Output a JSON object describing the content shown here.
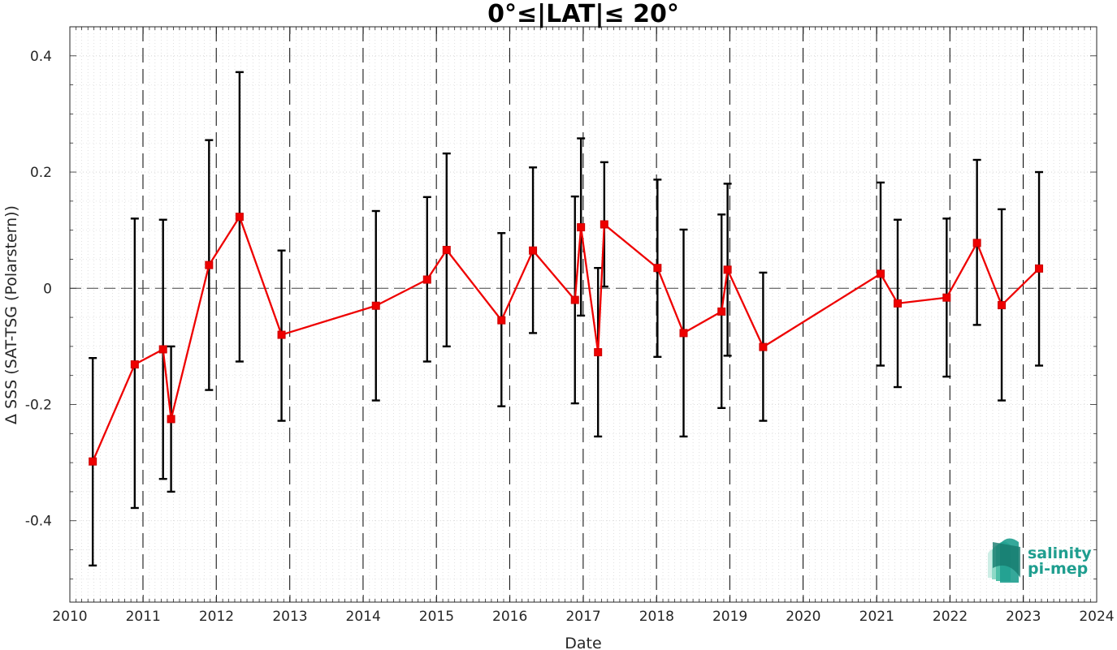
{
  "chart_data": {
    "type": "line",
    "title": "0°≤|LAT|≤ 20°",
    "xlabel": "Date",
    "ylabel": "Δ SSS (SAT-TSG (Polarstern))",
    "xlim": [
      "2010-01-01",
      "2024-01-01"
    ],
    "ylim": [
      -0.54,
      0.45
    ],
    "x_ticks": [
      "2010",
      "2011",
      "2012",
      "2013",
      "2014",
      "2015",
      "2016",
      "2017",
      "2018",
      "2019",
      "2020",
      "2021",
      "2022",
      "2023",
      "2024"
    ],
    "y_ticks": [
      {
        "value": -0.4,
        "label": "-0.4"
      },
      {
        "value": -0.2,
        "label": "-0.2"
      },
      {
        "value": 0,
        "label": "0"
      },
      {
        "value": 0.2,
        "label": "0.2"
      },
      {
        "value": 0.4,
        "label": "0.4"
      }
    ],
    "grid": true,
    "reference_line_y": 0,
    "vertical_dashed_lines": [
      "2010-12-31",
      "2011-12-31",
      "2012-12-31",
      "2013-12-31",
      "2014-12-31",
      "2015-12-31",
      "2016-12-31",
      "2017-12-31",
      "2018-12-31",
      "2019-12-31",
      "2020-12-31",
      "2021-12-31",
      "2022-12-31"
    ],
    "series": [
      {
        "color": "#ee0000",
        "errorbar_color": "#000000",
        "points": [
          {
            "x": "2010-04-25",
            "y": -0.298,
            "low": -0.477,
            "high": -0.12
          },
          {
            "x": "2010-11-20",
            "y": -0.131,
            "low": -0.378,
            "high": 0.12
          },
          {
            "x": "2011-04-10",
            "y": -0.105,
            "low": -0.328,
            "high": 0.118
          },
          {
            "x": "2011-05-20",
            "y": -0.225,
            "low": -0.35,
            "high": -0.1
          },
          {
            "x": "2011-11-25",
            "y": 0.04,
            "low": -0.175,
            "high": 0.255
          },
          {
            "x": "2012-04-25",
            "y": 0.123,
            "low": -0.126,
            "high": 0.372
          },
          {
            "x": "2012-11-20",
            "y": -0.08,
            "low": -0.228,
            "high": 0.065
          },
          {
            "x": "2014-03-05",
            "y": -0.03,
            "low": -0.193,
            "high": 0.133
          },
          {
            "x": "2014-11-15",
            "y": 0.015,
            "low": -0.126,
            "high": 0.157
          },
          {
            "x": "2015-02-20",
            "y": 0.066,
            "low": -0.1,
            "high": 0.232
          },
          {
            "x": "2015-11-20",
            "y": -0.055,
            "low": -0.203,
            "high": 0.095
          },
          {
            "x": "2016-04-25",
            "y": 0.065,
            "low": -0.077,
            "high": 0.208
          },
          {
            "x": "2016-11-20",
            "y": -0.02,
            "low": -0.198,
            "high": 0.158
          },
          {
            "x": "2016-12-20",
            "y": 0.105,
            "low": -0.047,
            "high": 0.258
          },
          {
            "x": "2017-03-15",
            "y": -0.11,
            "low": -0.255,
            "high": 0.035
          },
          {
            "x": "2017-04-15",
            "y": 0.11,
            "low": 0.003,
            "high": 0.217
          },
          {
            "x": "2018-01-05",
            "y": 0.035,
            "low": -0.118,
            "high": 0.187
          },
          {
            "x": "2018-05-15",
            "y": -0.077,
            "low": -0.255,
            "high": 0.101
          },
          {
            "x": "2018-11-20",
            "y": -0.04,
            "low": -0.206,
            "high": 0.127
          },
          {
            "x": "2018-12-20",
            "y": 0.032,
            "low": -0.116,
            "high": 0.18
          },
          {
            "x": "2019-06-15",
            "y": -0.101,
            "low": -0.228,
            "high": 0.027
          },
          {
            "x": "2021-01-20",
            "y": 0.025,
            "low": -0.133,
            "high": 0.182
          },
          {
            "x": "2021-04-15",
            "y": -0.026,
            "low": -0.17,
            "high": 0.118
          },
          {
            "x": "2021-12-15",
            "y": -0.016,
            "low": -0.152,
            "high": 0.12
          },
          {
            "x": "2022-05-15",
            "y": 0.078,
            "low": -0.063,
            "high": 0.221
          },
          {
            "x": "2022-09-15",
            "y": -0.029,
            "low": -0.193,
            "high": 0.136
          },
          {
            "x": "2023-03-20",
            "y": 0.034,
            "low": -0.133,
            "high": 0.2
          }
        ]
      }
    ]
  },
  "logo": {
    "line1": "salinity",
    "line2": "pi-mep",
    "color": "#1f9e8f"
  }
}
